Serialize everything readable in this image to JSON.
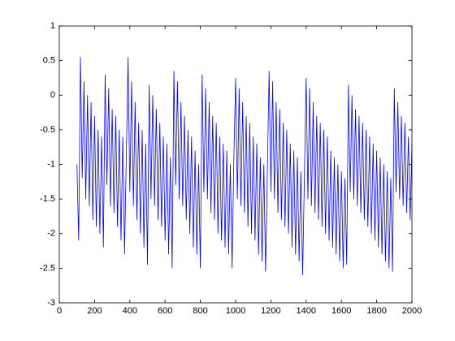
{
  "chart_data": {
    "type": "line",
    "x": [
      100,
      110,
      120,
      130,
      140,
      150,
      160,
      170,
      180,
      190,
      200,
      210,
      220,
      230,
      240,
      250,
      260,
      270,
      280,
      290,
      300,
      310,
      320,
      330,
      340,
      350,
      360,
      370,
      380,
      390,
      400,
      410,
      420,
      430,
      440,
      450,
      460,
      470,
      480,
      490,
      500,
      510,
      520,
      530,
      540,
      550,
      560,
      570,
      580,
      590,
      600,
      610,
      620,
      630,
      640,
      650,
      660,
      670,
      680,
      690,
      700,
      710,
      720,
      730,
      740,
      750,
      760,
      770,
      780,
      790,
      800,
      810,
      820,
      830,
      840,
      850,
      860,
      870,
      880,
      890,
      900,
      910,
      920,
      930,
      940,
      950,
      960,
      970,
      980,
      990,
      1000,
      1010,
      1020,
      1030,
      1040,
      1050,
      1060,
      1070,
      1080,
      1090,
      1100,
      1110,
      1120,
      1130,
      1140,
      1150,
      1160,
      1170,
      1180,
      1190,
      1200,
      1210,
      1220,
      1230,
      1240,
      1250,
      1260,
      1270,
      1280,
      1290,
      1300,
      1310,
      1320,
      1330,
      1340,
      1350,
      1360,
      1370,
      1380,
      1390,
      1400,
      1410,
      1420,
      1430,
      1440,
      1450,
      1460,
      1470,
      1480,
      1490,
      1500,
      1510,
      1520,
      1530,
      1540,
      1550,
      1560,
      1570,
      1580,
      1590,
      1600,
      1610,
      1620,
      1630,
      1640,
      1650,
      1660,
      1670,
      1680,
      1690,
      1700,
      1710,
      1720,
      1730,
      1740,
      1750,
      1760,
      1770,
      1780,
      1790,
      1800,
      1810,
      1820,
      1830,
      1840,
      1850,
      1860,
      1870,
      1880,
      1890,
      1900,
      1910,
      1920,
      1930,
      1940,
      1950,
      1960,
      1970,
      1980,
      1990,
      2000
    ],
    "series": [
      {
        "color": "#0000ff",
        "values": [
          -1,
          -2.1,
          0.55,
          -1.2,
          0.2,
          -1.5,
          0,
          -1.6,
          -0.1,
          -1.8,
          -0.3,
          -1.9,
          -0.5,
          -2.0,
          -0.6,
          -2.2,
          0.3,
          -1.3,
          0.1,
          -1.6,
          -0.2,
          -1.7,
          -0.3,
          -1.9,
          -0.5,
          -2.1,
          -0.6,
          -2.3,
          -0.9,
          0.55,
          -1.4,
          0.2,
          -1.6,
          -0.1,
          -1.8,
          -0.4,
          -2.0,
          -0.5,
          -2.2,
          -0.7,
          -2.45,
          0.15,
          -1.5,
          0,
          -1.6,
          -0.2,
          -1.8,
          -0.4,
          -1.9,
          -0.6,
          -2.1,
          -0.7,
          -2.3,
          -0.9,
          -2.5,
          0.35,
          -1.3,
          0.2,
          -1.5,
          -0.1,
          -1.6,
          -0.3,
          -1.8,
          -0.5,
          -2.0,
          -0.6,
          -2.2,
          -0.8,
          -2.3,
          -1.0,
          -2.5,
          0.3,
          -1.4,
          0.1,
          -1.5,
          -0.1,
          -1.7,
          -0.3,
          -1.8,
          -0.4,
          -2.0,
          -0.6,
          -2.1,
          -0.7,
          -2.2,
          -0.8,
          -2.3,
          -1.0,
          -2.5,
          -0.9,
          0.25,
          -1.5,
          0.1,
          -1.6,
          -0.1,
          -1.7,
          -0.3,
          -1.9,
          -0.4,
          -2.0,
          -0.6,
          -2.1,
          -0.7,
          -2.3,
          -0.9,
          -2.4,
          -1.0,
          -2.55,
          -1.1,
          0.35,
          -1.4,
          0.2,
          -1.5,
          -0.1,
          -1.7,
          -0.2,
          -1.8,
          -0.4,
          -1.9,
          -0.5,
          -2.0,
          -0.7,
          -2.2,
          -0.8,
          -2.3,
          -0.9,
          -2.4,
          -1.1,
          -2.6,
          -1.2,
          0.25,
          -1.5,
          0.1,
          -1.6,
          -0.1,
          -1.7,
          -0.3,
          -1.8,
          -0.4,
          -1.9,
          -0.5,
          -2.0,
          -0.6,
          -2.1,
          -0.8,
          -2.2,
          -0.9,
          -2.3,
          -1.0,
          -2.4,
          -1.1,
          -2.5,
          -1.2,
          -2.45,
          0.15,
          -1.4,
          0,
          -1.5,
          -0.2,
          -1.6,
          -0.3,
          -1.7,
          -0.4,
          -1.8,
          -0.5,
          -1.9,
          -0.6,
          -2.0,
          -0.7,
          -2.1,
          -0.8,
          -2.2,
          -0.9,
          -2.3,
          -1.0,
          -2.4,
          -1.1,
          -2.5,
          -1.2,
          -2.55,
          0.1,
          -1.4,
          -0.1,
          -1.5,
          -0.3,
          -1.6,
          -0.4,
          -1.7,
          -0.6,
          -1.8,
          -0.7
        ]
      }
    ],
    "xlim": [
      0,
      2000
    ],
    "xticks": [
      0,
      200,
      400,
      600,
      800,
      1000,
      1200,
      1400,
      1600,
      1800,
      2000
    ],
    "ylim": [
      -3,
      1
    ],
    "yticks": [
      -3,
      -2.5,
      -2,
      -1.5,
      -1,
      -0.5,
      0,
      0.5,
      1
    ]
  }
}
